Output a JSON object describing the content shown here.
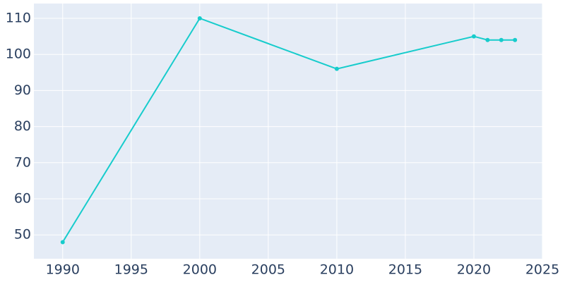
{
  "chart_data": {
    "type": "line",
    "x": [
      1990,
      2000,
      2010,
      2020,
      2021,
      2022,
      2023
    ],
    "series": [
      {
        "color": "#17cccc",
        "values": [
          48,
          110,
          96,
          105,
          104,
          104,
          104
        ]
      }
    ],
    "xlim": [
      1987.9,
      2025
    ],
    "xticks": [
      1990,
      1995,
      2000,
      2005,
      2010,
      2015,
      2020,
      2025
    ],
    "ylim": [
      43.4,
      114.1
    ],
    "yticks": [
      50,
      60,
      70,
      80,
      90,
      100,
      110
    ],
    "grid": true
  }
}
